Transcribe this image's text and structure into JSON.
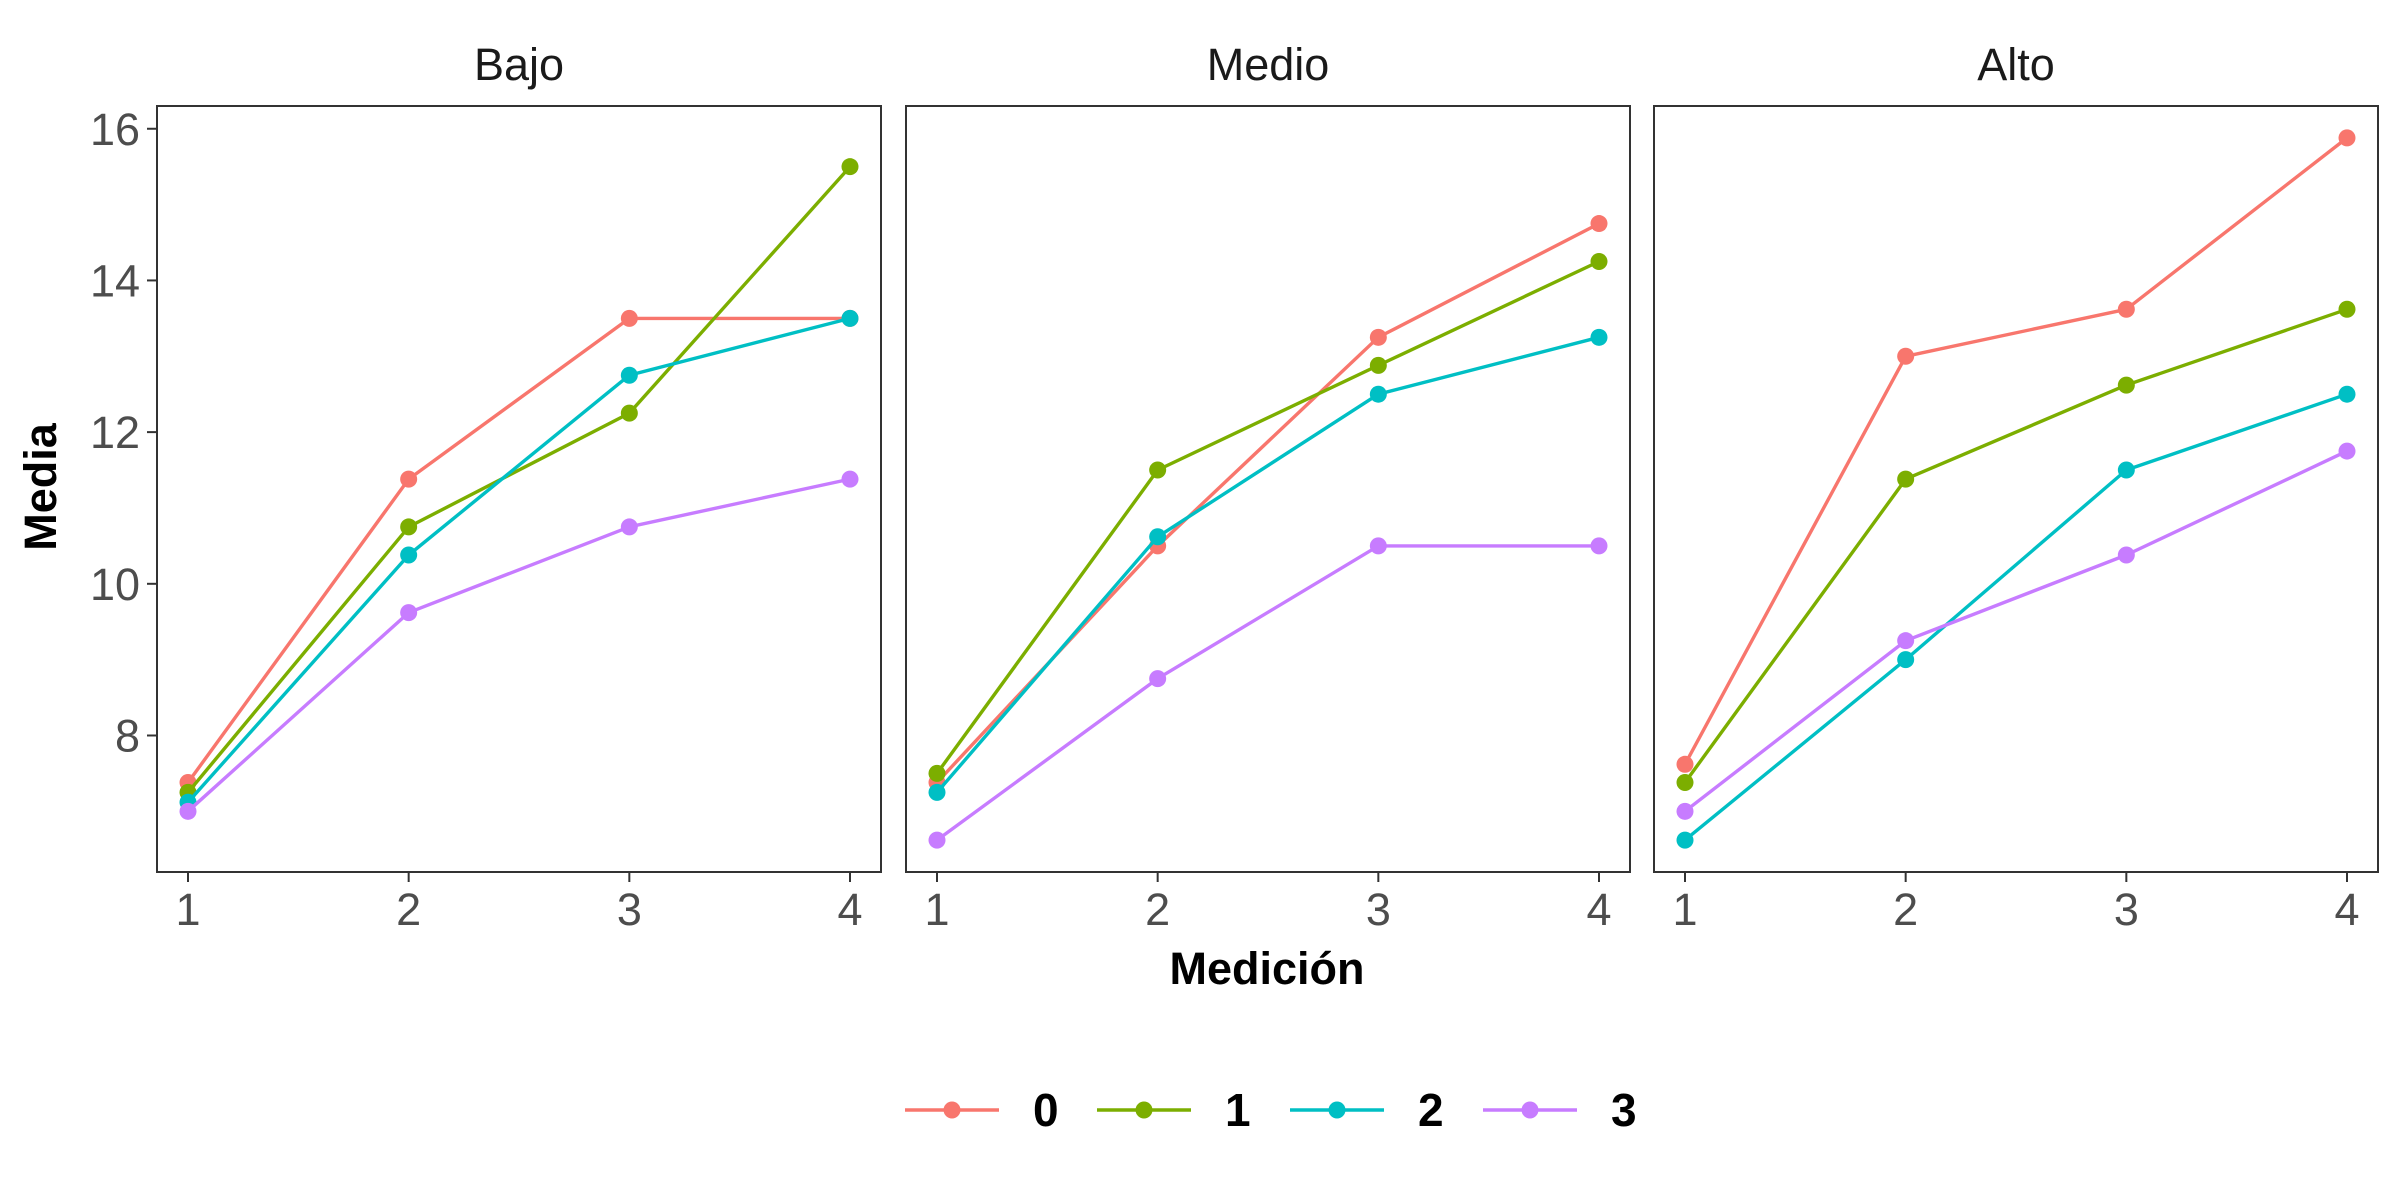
{
  "chart_data": {
    "type": "line",
    "facet_label_type": "panels",
    "xlabel": "Medición",
    "ylabel": "Media",
    "x": [
      1,
      2,
      3,
      4
    ],
    "ylim": [
      6.2,
      16.3
    ],
    "yticks": [
      8,
      10,
      12,
      14,
      16
    ],
    "grid": false,
    "legend_position": "bottom",
    "series_colors": {
      "0": "#F8766D",
      "1": "#7CAE00",
      "2": "#00BFC4",
      "3": "#C77CFF"
    },
    "legend": [
      "0",
      "1",
      "2",
      "3"
    ],
    "panels": [
      {
        "title": "Bajo",
        "series": [
          {
            "name": "0",
            "values": [
              7.38,
              11.38,
              13.5,
              13.5
            ]
          },
          {
            "name": "1",
            "values": [
              7.25,
              10.75,
              12.25,
              15.5
            ]
          },
          {
            "name": "2",
            "values": [
              7.12,
              10.38,
              12.75,
              13.5
            ]
          },
          {
            "name": "3",
            "values": [
              7.0,
              9.62,
              10.75,
              11.38
            ]
          }
        ]
      },
      {
        "title": "Medio",
        "series": [
          {
            "name": "0",
            "values": [
              7.38,
              10.5,
              13.25,
              14.75
            ]
          },
          {
            "name": "1",
            "values": [
              7.5,
              11.5,
              12.88,
              14.25
            ]
          },
          {
            "name": "2",
            "values": [
              7.25,
              10.62,
              12.5,
              13.25
            ]
          },
          {
            "name": "3",
            "values": [
              6.62,
              8.75,
              10.5,
              10.5
            ]
          }
        ]
      },
      {
        "title": "Alto",
        "series": [
          {
            "name": "0",
            "values": [
              7.62,
              13.0,
              13.62,
              15.88
            ]
          },
          {
            "name": "1",
            "values": [
              7.38,
              11.38,
              12.62,
              13.62
            ]
          },
          {
            "name": "2",
            "values": [
              6.62,
              9.0,
              11.5,
              12.5
            ]
          },
          {
            "name": "3",
            "values": [
              7.0,
              9.25,
              10.38,
              11.75
            ]
          }
        ]
      }
    ]
  }
}
